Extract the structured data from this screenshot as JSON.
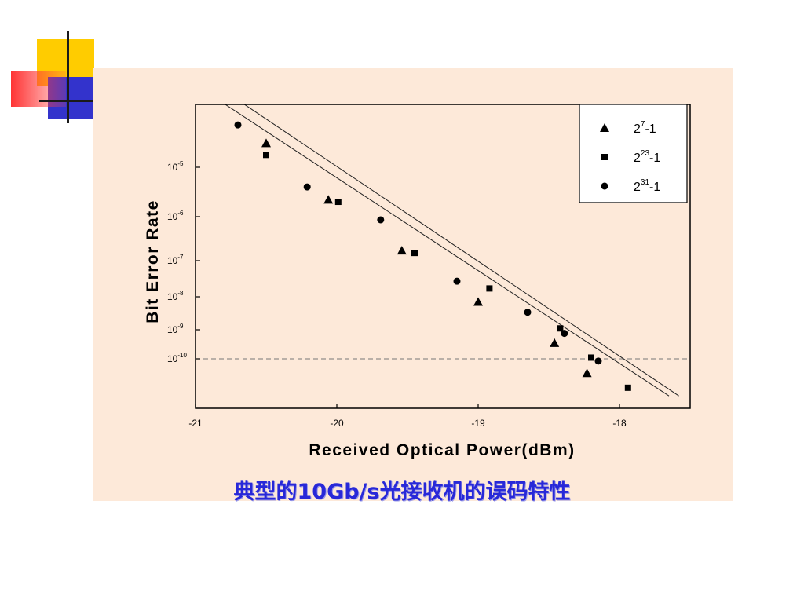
{
  "caption": "典型的10Gb/s光接收机的误码特性",
  "colors": {
    "panel": "#fde9d9",
    "caption": "#2828d8",
    "deco_yellow": "#ffcc00",
    "deco_blue": "#3333cc",
    "deco_red": "#ff3333"
  },
  "chart_data": {
    "type": "scatter",
    "xlabel": "Received Optical Power(dBm)",
    "ylabel": "Bit Error Rate",
    "xlim": [
      -21,
      -17.5
    ],
    "xticks": [
      {
        "value": -21,
        "label": "-21"
      },
      {
        "value": -20,
        "label": "-20"
      },
      {
        "value": -19,
        "label": "-19"
      },
      {
        "value": -18,
        "label": "-18"
      }
    ],
    "yscale": "log",
    "yticks": [
      {
        "value": 1e-05,
        "base": "10",
        "exp": "-5"
      },
      {
        "value": 1e-06,
        "base": "10",
        "exp": "-6"
      },
      {
        "value": 1e-07,
        "base": "10",
        "exp": "-7"
      },
      {
        "value": 1e-08,
        "base": "10",
        "exp": "-8"
      },
      {
        "value": 1e-09,
        "base": "10",
        "exp": "-9"
      },
      {
        "value": 1e-10,
        "base": "10",
        "exp": "-10"
      }
    ],
    "threshold": 1e-10,
    "legend_position": "top-right",
    "series": [
      {
        "name": "2^7-1",
        "base": "2",
        "exp": "7",
        "suffix": "-1",
        "marker": "triangle",
        "points": [
          [
            -20.5,
            2.5e-05
          ],
          [
            -20.06,
            2.2e-06
          ],
          [
            -19.54,
            1.7e-07
          ],
          [
            -19.0,
            7e-09
          ],
          [
            -18.46,
            3.5e-10
          ],
          [
            -18.23,
            3.5e-11
          ]
        ]
      },
      {
        "name": "2^23-1",
        "base": "2",
        "exp": "23",
        "suffix": "-1",
        "marker": "square",
        "points": [
          [
            -20.5,
            1.6e-05
          ],
          [
            -19.99,
            2e-06
          ],
          [
            -19.45,
            1.5e-07
          ],
          [
            -18.92,
            1.7e-08
          ],
          [
            -18.42,
            1.1e-09
          ],
          [
            -18.2,
            1.1e-10
          ],
          [
            -17.94,
            1.2e-11
          ]
        ]
      },
      {
        "name": "2^31-1",
        "base": "2",
        "exp": "31",
        "suffix": "-1",
        "marker": "circle",
        "points": [
          [
            -20.7,
            5e-05
          ],
          [
            -20.21,
            4e-06
          ],
          [
            -19.69,
            8.5e-07
          ],
          [
            -19.15,
            2.7e-08
          ],
          [
            -18.65,
            3.4e-09
          ],
          [
            -18.39,
            7.5e-10
          ],
          [
            -18.15,
            8.5e-11
          ]
        ]
      }
    ],
    "fit_lines": [
      {
        "from": [
          -21.0,
          0.00023
        ],
        "to": [
          -17.65,
          6.3e-12
        ]
      },
      {
        "from": [
          -20.86,
          0.00023
        ],
        "to": [
          -17.58,
          6.3e-12
        ]
      }
    ]
  }
}
